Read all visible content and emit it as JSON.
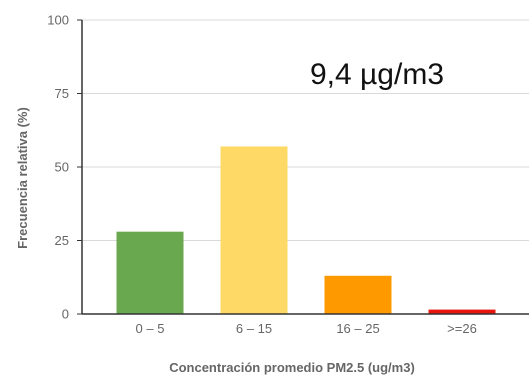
{
  "chart_data": {
    "type": "bar",
    "categories": [
      "0 – 5",
      "6 – 15",
      "16 – 25",
      ">=26"
    ],
    "values": [
      28,
      57,
      13,
      1.5
    ],
    "colors": [
      "#6aa84f",
      "#ffd966",
      "#ff9900",
      "#e8150e"
    ],
    "annotation": "9,4 µg/m3",
    "xlabel": "Concentración promedio PM2.5 (ug/m3)",
    "ylabel": "Frecuencia relativa (%)",
    "ylim": [
      0,
      100
    ],
    "yticks": [
      "0",
      "25",
      "50",
      "75",
      "100"
    ],
    "ytick_values": [
      0,
      25,
      50,
      75,
      100
    ],
    "grid": true,
    "legend": "none"
  }
}
